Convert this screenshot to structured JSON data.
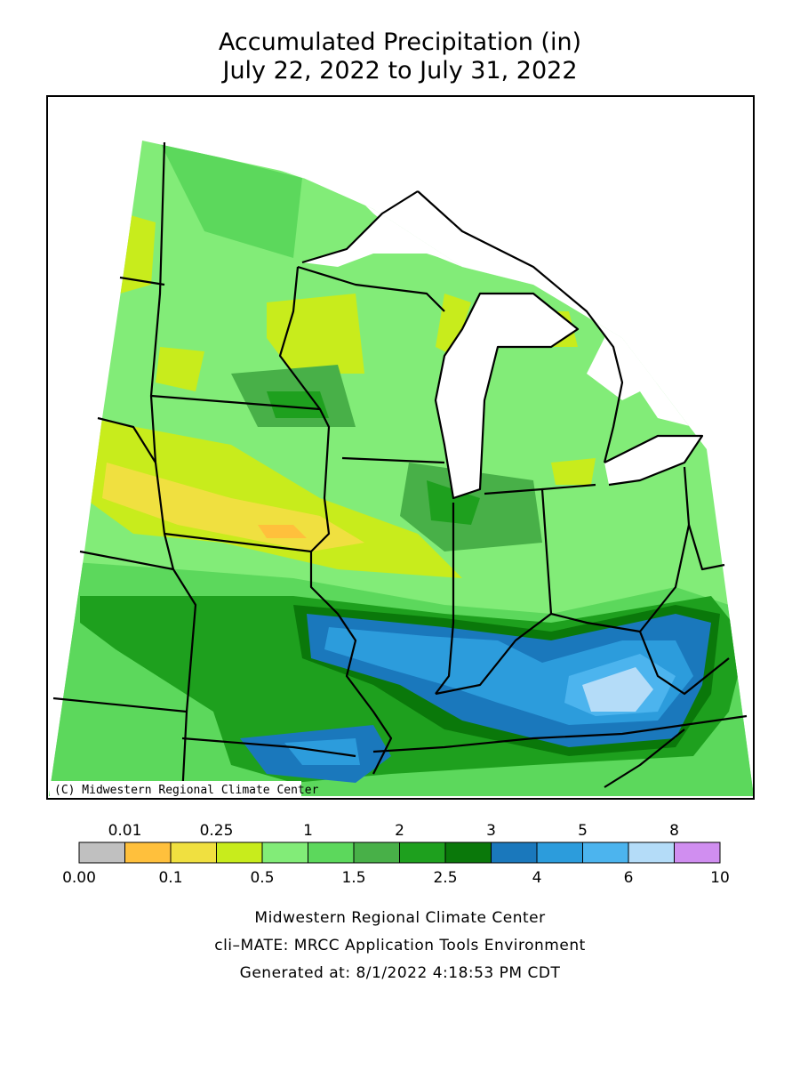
{
  "header": {
    "title": "Accumulated Precipitation (in)",
    "subtitle": "July 22, 2022 to July 31, 2022"
  },
  "map": {
    "credit": "(C) Midwestern Regional Climate Center"
  },
  "legend": {
    "colors": [
      "#c0c0c0",
      "#ffc03c",
      "#f0e040",
      "#c8ec1c",
      "#82ec78",
      "#5cd85c",
      "#48b048",
      "#1ea01e",
      "#0a780a",
      "#1a78bc",
      "#2c9cdc",
      "#4cb4ee",
      "#b4dcf8",
      "#d08ef0"
    ],
    "top_labels": [
      "0.01",
      "0.25",
      "1",
      "2",
      "3",
      "5",
      "8"
    ],
    "bottom_labels": [
      "0.00",
      "0.1",
      "0.5",
      "1.5",
      "2.5",
      "4",
      "6",
      "10"
    ]
  },
  "footer": {
    "lines": [
      "Midwestern Regional Climate Center",
      "cli–MATE: MRCC Application Tools Environment",
      "Generated at: 8/1/2022 4:18:53 PM CDT"
    ]
  }
}
